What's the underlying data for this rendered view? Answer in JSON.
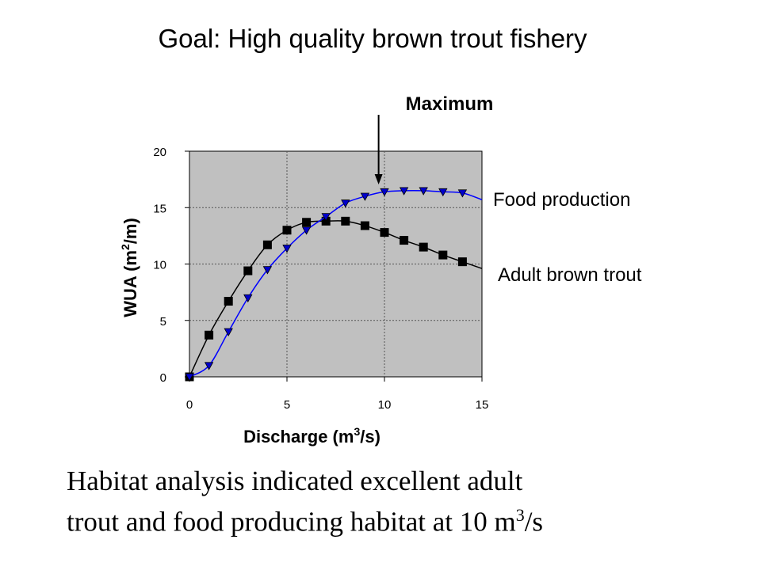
{
  "slide": {
    "title": "Goal: High quality brown trout fishery",
    "caption_line1": "Habitat analysis indicated excellent adult",
    "caption_line2_prefix": "trout and food producing habitat at 10 m",
    "caption_line2_sup": "3",
    "caption_line2_suffix": "/s"
  },
  "chart_data": {
    "type": "line",
    "xlabel_text": "Discharge (m",
    "xlabel_sup": "3",
    "xlabel_end": "/s)",
    "ylabel_text": "WUA (m",
    "ylabel_sup": "2",
    "ylabel_end": "/m)",
    "xlim": [
      0,
      15
    ],
    "ylim": [
      0,
      20
    ],
    "xticks": [
      0,
      5,
      10,
      15
    ],
    "yticks": [
      0,
      5,
      10,
      15,
      20
    ],
    "grid": true,
    "plot_background": "#c0c0c0",
    "annotation": {
      "label": "Maximum",
      "x": 9.7
    },
    "series": [
      {
        "name": "Adult brown trout",
        "color": "#000000",
        "marker": "square",
        "x": [
          0,
          1,
          2,
          3,
          4,
          5,
          6,
          7,
          8,
          9,
          10,
          11,
          12,
          13,
          14
        ],
        "y": [
          0,
          3.7,
          6.7,
          9.4,
          11.7,
          13.0,
          13.7,
          13.8,
          13.8,
          13.4,
          12.8,
          12.1,
          11.5,
          10.8,
          10.2
        ],
        "curve_end": [
          15,
          9.6
        ]
      },
      {
        "name": "Food production",
        "color": "#0000ff",
        "marker": "triangle-down",
        "x": [
          0,
          1,
          2,
          3,
          4,
          5,
          6,
          7,
          8,
          9,
          10,
          11,
          12,
          13,
          14
        ],
        "y": [
          0,
          1.0,
          4.0,
          7.0,
          9.5,
          11.4,
          13.0,
          14.2,
          15.4,
          16.0,
          16.4,
          16.5,
          16.5,
          16.4,
          16.3
        ],
        "curve_end": [
          15,
          15.7
        ]
      }
    ]
  }
}
